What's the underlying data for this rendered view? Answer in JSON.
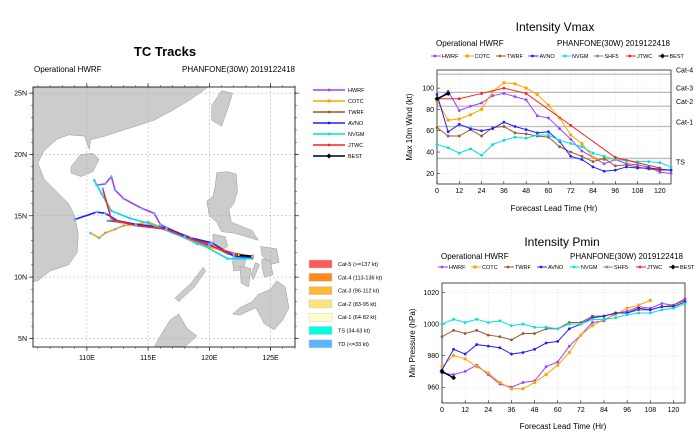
{
  "models": [
    {
      "name": "HWRF",
      "color": "#a040ff"
    },
    {
      "name": "COTC",
      "color": "#ffa500"
    },
    {
      "name": "TWRF",
      "color": "#9a5a2a"
    },
    {
      "name": "AVNO",
      "color": "#2020ff"
    },
    {
      "name": "NVGM",
      "color": "#00e0e0"
    },
    {
      "name": "SHF5",
      "color": "#888888"
    },
    {
      "name": "JTWC",
      "color": "#ff2020"
    },
    {
      "name": "BEST",
      "color": "#000000"
    }
  ],
  "chart_data": [
    {
      "type": "line",
      "title": "TC Tracks",
      "subtitle_left": "Operational HWRF",
      "subtitle_right": "PHANFONE(30W) 2019122418",
      "xlim": [
        105.6,
        127.0
      ],
      "ylim": [
        4.3,
        25.5
      ],
      "xticks": [
        {
          "v": 110,
          "label": "110E"
        },
        {
          "v": 115,
          "label": "115E"
        },
        {
          "v": 120,
          "label": "120E"
        },
        {
          "v": 125,
          "label": "125E"
        }
      ],
      "yticks": [
        {
          "v": 25,
          "label": "25N"
        },
        {
          "v": 20,
          "label": "20N"
        },
        {
          "v": 15,
          "label": "15N"
        },
        {
          "v": 10,
          "label": "10N"
        },
        {
          "v": 5,
          "label": "5N"
        }
      ],
      "grid": true,
      "legend_position": "right",
      "series": [
        {
          "name": "HWRF",
          "points": [
            [
              123.5,
              11.6
            ],
            [
              121,
              12.2
            ],
            [
              119,
              12.8
            ],
            [
              117,
              13.8
            ],
            [
              116,
              14.3
            ],
            [
              115.5,
              15.2
            ],
            [
              114.5,
              15.6
            ],
            [
              113,
              16.4
            ],
            [
              112.3,
              17.1
            ],
            [
              112,
              18.2
            ],
            [
              111.5,
              17.6
            ],
            [
              110.8,
              17.5
            ]
          ]
        },
        {
          "name": "COTC",
          "points": [
            [
              123.5,
              11.6
            ],
            [
              121,
              12.2
            ],
            [
              119,
              12.7
            ],
            [
              117,
              13.7
            ],
            [
              115,
              14.5
            ],
            [
              114,
              14.3
            ],
            [
              113,
              14.2
            ],
            [
              112.3,
              13.9
            ],
            [
              111.5,
              13.6
            ],
            [
              111,
              13.2
            ],
            [
              110.3,
              13.6
            ]
          ]
        },
        {
          "name": "TWRF",
          "points": [
            [
              123.5,
              11.6
            ],
            [
              121.5,
              11.9
            ],
            [
              120,
              12.7
            ],
            [
              118,
              13.3
            ],
            [
              116,
              14.1
            ],
            [
              114,
              14.3
            ],
            [
              112.5,
              14.5
            ],
            [
              111.7,
              14.6
            ]
          ]
        },
        {
          "name": "AVNO",
          "points": [
            [
              123.5,
              11.6
            ],
            [
              122,
              11.7
            ],
            [
              120.2,
              12.8
            ],
            [
              118.5,
              13.2
            ],
            [
              116.5,
              14
            ],
            [
              114,
              14.3
            ],
            [
              112.5,
              14.6
            ],
            [
              111.5,
              15.2
            ],
            [
              110.8,
              15.3
            ],
            [
              109,
              14.7
            ]
          ]
        },
        {
          "name": "NVGM",
          "points": [
            [
              123.5,
              11.5
            ],
            [
              121.5,
              11.5
            ],
            [
              119.5,
              12.6
            ],
            [
              117,
              13.6
            ],
            [
              115,
              14.4
            ],
            [
              113.5,
              14.8
            ],
            [
              112,
              15.4
            ],
            [
              111.2,
              16.8
            ],
            [
              110.6,
              17.9
            ]
          ]
        },
        {
          "name": "JTWC",
          "points": [
            [
              123.5,
              11.7
            ],
            [
              122,
              11.9
            ],
            [
              120,
              12.6
            ],
            [
              118,
              13.3
            ],
            [
              116.5,
              13.9
            ],
            [
              114,
              14.2
            ],
            [
              112,
              14.7
            ],
            [
              111.3,
              17.2
            ]
          ]
        },
        {
          "name": "BEST",
          "points": [
            [
              123.5,
              11.7
            ],
            [
              122.4,
              11.8
            ]
          ]
        }
      ],
      "category_legend": [
        {
          "label": "Cat-5 (>=137 kt)",
          "color": "#ff5a5a"
        },
        {
          "label": "Cat-4 (113-136 kt)",
          "color": "#ff8c1a"
        },
        {
          "label": "Cat-3 (96-112 kt)",
          "color": "#ffb833"
        },
        {
          "label": "Cat-2 (83-95 kt)",
          "color": "#ffe27a"
        },
        {
          "label": "Cat-1 (64-82 kt)",
          "color": "#ffffcc"
        },
        {
          "label": "TS (34-63 kt)",
          "color": "#00ffe0"
        },
        {
          "label": "TD (<=33 kt)",
          "color": "#5ab4ff"
        }
      ]
    },
    {
      "type": "line",
      "title": "Intensity Vmax",
      "subtitle_left": "Operational HWRF",
      "subtitle_right": "PHANFONE(30W) 2019122418",
      "xlabel": "Forecast Lead Time (Hr)",
      "ylabel": "Max 10m Wind (kt)",
      "xlim": [
        0,
        126
      ],
      "ylim": [
        10,
        117
      ],
      "xticks": [
        0,
        12,
        24,
        36,
        48,
        60,
        72,
        84,
        96,
        108,
        120
      ],
      "yticks": [
        20,
        40,
        60,
        80,
        100
      ],
      "grid": true,
      "legend_position": "top",
      "reference_lines": [
        {
          "label": "TS",
          "value": 34
        },
        {
          "label": "Cat-1",
          "value": 64
        },
        {
          "label": "Cat-2",
          "value": 83
        },
        {
          "label": "Cat-3",
          "value": 96
        },
        {
          "label": "Cat-4",
          "value": 113
        }
      ],
      "series": [
        {
          "name": "HWRF",
          "x": [
            0,
            6,
            12,
            18,
            24,
            30,
            36,
            42,
            48,
            54,
            60,
            66,
            72,
            78,
            84,
            90,
            96,
            102,
            108,
            114,
            120,
            126
          ],
          "y": [
            88,
            97,
            79,
            83,
            86,
            93,
            95,
            92,
            89,
            74,
            72,
            62,
            52,
            41,
            35,
            29,
            33,
            29,
            28,
            26,
            21,
            20
          ]
        },
        {
          "name": "COTC",
          "x": [
            0,
            6,
            12,
            18,
            24,
            30,
            36,
            42,
            48,
            54,
            60,
            66,
            72,
            78,
            84,
            90,
            96,
            102,
            108
          ],
          "y": [
            88,
            70,
            71,
            75,
            80,
            97,
            105,
            104,
            100,
            94,
            84,
            72,
            56,
            48,
            35,
            33,
            34,
            32,
            30
          ]
        },
        {
          "name": "TWRF",
          "x": [
            0,
            6,
            12,
            18,
            24,
            30,
            36,
            42,
            48,
            54,
            60,
            66,
            72,
            78,
            84,
            90,
            96,
            102,
            108,
            114,
            120,
            126
          ],
          "y": [
            63,
            55,
            55,
            61,
            55,
            63,
            64,
            58,
            57,
            55,
            54,
            45,
            40,
            36,
            31,
            34,
            27,
            28,
            26,
            24,
            23,
            23
          ]
        },
        {
          "name": "AVNO",
          "x": [
            0,
            6,
            12,
            18,
            24,
            30,
            36,
            42,
            48,
            54,
            60,
            66,
            72,
            78,
            84,
            90,
            96,
            102,
            108,
            114,
            120,
            126
          ],
          "y": [
            94,
            59,
            66,
            62,
            60,
            62,
            68,
            64,
            61,
            58,
            59,
            50,
            36,
            33,
            26,
            22,
            23,
            26,
            25,
            25,
            24,
            23
          ]
        },
        {
          "name": "NVGM",
          "x": [
            0,
            6,
            12,
            18,
            24,
            30,
            36,
            42,
            48,
            54,
            60,
            66,
            72,
            78,
            84,
            90,
            96,
            102,
            108,
            114,
            120,
            126
          ],
          "y": [
            47,
            44,
            39,
            43,
            37,
            47,
            51,
            54,
            53,
            56,
            56,
            51,
            48,
            45,
            39,
            36,
            33,
            32,
            31,
            31,
            30,
            26
          ]
        },
        {
          "name": "JTWC",
          "x": [
            0,
            12,
            24,
            36,
            48,
            72,
            96,
            120
          ],
          "y": [
            90,
            90,
            95,
            100,
            95,
            65,
            35,
            25
          ]
        },
        {
          "name": "BEST",
          "x": [
            0,
            6
          ],
          "y": [
            90,
            95
          ]
        }
      ]
    },
    {
      "type": "line",
      "title": "Intensity Pmin",
      "subtitle_left": "Operational HWRF",
      "subtitle_right": "PHANFONE(30W) 2019122418",
      "xlabel": "Forecast Lead Time (Hr)",
      "ylabel": "Min Pressure (hPa)",
      "xlim": [
        0,
        126
      ],
      "ylim": [
        950,
        1026
      ],
      "xticks": [
        0,
        12,
        24,
        36,
        48,
        60,
        72,
        84,
        96,
        108,
        120
      ],
      "yticks": [
        960,
        980,
        1000,
        1020
      ],
      "grid": true,
      "legend_position": "top",
      "series": [
        {
          "name": "HWRF",
          "x": [
            0,
            6,
            12,
            18,
            24,
            30,
            36,
            42,
            48,
            54,
            60,
            66,
            72,
            78,
            84,
            90,
            96,
            102,
            108,
            114,
            120,
            126
          ],
          "y": [
            969,
            968,
            970,
            974,
            968,
            962,
            960,
            963,
            964,
            973,
            976,
            986,
            993,
            1001,
            1002,
            1007,
            1008,
            1011,
            1010,
            1013,
            1012,
            1016
          ]
        },
        {
          "name": "COTC",
          "x": [
            0,
            6,
            12,
            18,
            24,
            30,
            36,
            42,
            48,
            54,
            60,
            66,
            72,
            78,
            84,
            90,
            96,
            102,
            108
          ],
          "y": [
            973,
            980,
            978,
            973,
            969,
            963,
            959,
            959,
            963,
            968,
            974,
            982,
            993,
            999,
            1003,
            1006,
            1010,
            1012,
            1015
          ]
        },
        {
          "name": "TWRF",
          "x": [
            0,
            6,
            12,
            18,
            24,
            30,
            36,
            42,
            48,
            54,
            60,
            66,
            72,
            78,
            84,
            90,
            96,
            102,
            108,
            114,
            120,
            126
          ],
          "y": [
            992,
            996,
            994,
            996,
            993,
            992,
            990,
            994,
            994,
            997,
            997,
            1001,
            1001,
            1005,
            1005,
            1007,
            1007,
            1009,
            1009,
            1011,
            1012,
            1015
          ]
        },
        {
          "name": "AVNO",
          "x": [
            0,
            6,
            12,
            18,
            24,
            30,
            36,
            42,
            48,
            54,
            60,
            66,
            72,
            78,
            84,
            90,
            96,
            102,
            108,
            114,
            120,
            126
          ],
          "y": [
            971,
            984,
            981,
            987,
            986,
            985,
            981,
            982,
            984,
            988,
            989,
            997,
            1000,
            1004,
            1005,
            1007,
            1007,
            1010,
            1009,
            1011,
            1011,
            1014
          ]
        },
        {
          "name": "NVGM",
          "x": [
            0,
            6,
            12,
            18,
            24,
            30,
            36,
            42,
            48,
            54,
            60,
            66,
            72,
            78,
            84,
            90,
            96,
            102,
            108,
            114,
            120,
            126
          ],
          "y": [
            1000,
            1003,
            1001,
            1003,
            1001,
            1002,
            999,
            1000,
            998,
            998,
            997,
            1000,
            1000,
            1003,
            1003,
            1004,
            1006,
            1007,
            1007,
            1009,
            1010,
            1013
          ]
        },
        {
          "name": "BEST",
          "x": [
            0,
            6
          ],
          "y": [
            970,
            966
          ]
        }
      ]
    }
  ]
}
